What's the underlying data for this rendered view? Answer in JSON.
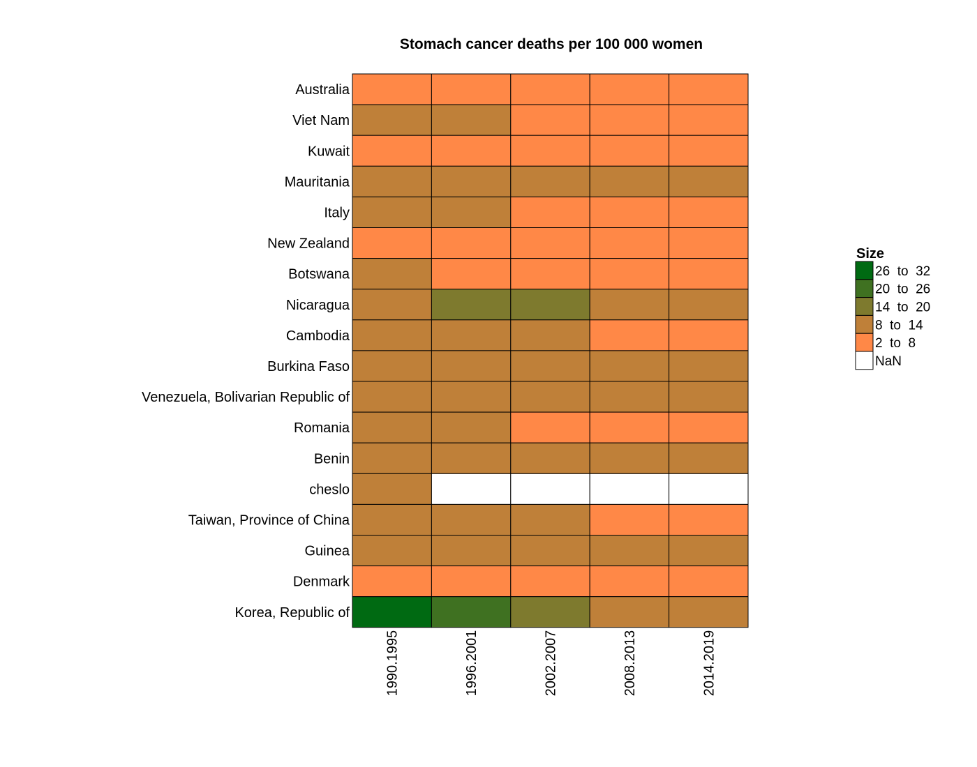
{
  "chart_data": {
    "type": "heatmap",
    "title": "Stomach cancer deaths per 100 000 women",
    "columns": [
      "1990.1995",
      "1996.2001",
      "2002.2007",
      "2008.2013",
      "2014.2019"
    ],
    "rows": [
      {
        "label": "Australia",
        "values": [
          "2  to  8",
          "2  to  8",
          "2  to  8",
          "2  to  8",
          "2  to  8"
        ]
      },
      {
        "label": "Viet Nam",
        "values": [
          "8  to  14",
          "8  to  14",
          "2  to  8",
          "2  to  8",
          "2  to  8"
        ]
      },
      {
        "label": "Kuwait",
        "values": [
          "2  to  8",
          "2  to  8",
          "2  to  8",
          "2  to  8",
          "2  to  8"
        ]
      },
      {
        "label": "Mauritania",
        "values": [
          "8  to  14",
          "8  to  14",
          "8  to  14",
          "8  to  14",
          "8  to  14"
        ]
      },
      {
        "label": "Italy",
        "values": [
          "8  to  14",
          "8  to  14",
          "2  to  8",
          "2  to  8",
          "2  to  8"
        ]
      },
      {
        "label": "New Zealand",
        "values": [
          "2  to  8",
          "2  to  8",
          "2  to  8",
          "2  to  8",
          "2  to  8"
        ]
      },
      {
        "label": "Botswana",
        "values": [
          "8  to  14",
          "2  to  8",
          "2  to  8",
          "2  to  8",
          "2  to  8"
        ]
      },
      {
        "label": "Nicaragua",
        "values": [
          "8  to  14",
          "14  to  20",
          "14  to  20",
          "8  to  14",
          "8  to  14"
        ]
      },
      {
        "label": "Cambodia",
        "values": [
          "8  to  14",
          "8  to  14",
          "8  to  14",
          "2  to  8",
          "2  to  8"
        ]
      },
      {
        "label": "Burkina Faso",
        "values": [
          "8  to  14",
          "8  to  14",
          "8  to  14",
          "8  to  14",
          "8  to  14"
        ]
      },
      {
        "label": "Venezuela, Bolivarian Republic of",
        "values": [
          "8  to  14",
          "8  to  14",
          "8  to  14",
          "8  to  14",
          "8  to  14"
        ]
      },
      {
        "label": "Romania",
        "values": [
          "8  to  14",
          "8  to  14",
          "2  to  8",
          "2  to  8",
          "2  to  8"
        ]
      },
      {
        "label": "Benin",
        "values": [
          "8  to  14",
          "8  to  14",
          "8  to  14",
          "8  to  14",
          "8  to  14"
        ]
      },
      {
        "label": "cheslo",
        "values": [
          "8  to  14",
          "NaN",
          "NaN",
          "NaN",
          "NaN"
        ]
      },
      {
        "label": "Taiwan, Province of China",
        "values": [
          "8  to  14",
          "8  to  14",
          "8  to  14",
          "2  to  8",
          "2  to  8"
        ]
      },
      {
        "label": "Guinea",
        "values": [
          "8  to  14",
          "8  to  14",
          "8  to  14",
          "8  to  14",
          "8  to  14"
        ]
      },
      {
        "label": "Denmark",
        "values": [
          "2  to  8",
          "2  to  8",
          "2  to  8",
          "2  to  8",
          "2  to  8"
        ]
      },
      {
        "label": "Korea, Republic of",
        "values": [
          "26  to  32",
          "20  to  26",
          "14  to  20",
          "8  to  14",
          "8  to  14"
        ]
      }
    ],
    "legend": {
      "title": "Size",
      "position": "right",
      "items": [
        {
          "label": "26  to  32",
          "color": "#006A12"
        },
        {
          "label": "20  to  26",
          "color": "#3F7121"
        },
        {
          "label": "14  to  20",
          "color": "#7E7A2E"
        },
        {
          "label": "8  to  14",
          "color": "#BF8039"
        },
        {
          "label": "2  to  8",
          "color": "#FF8847"
        },
        {
          "label": "NaN",
          "color": "#FFFFFF"
        }
      ]
    },
    "grid": true
  }
}
